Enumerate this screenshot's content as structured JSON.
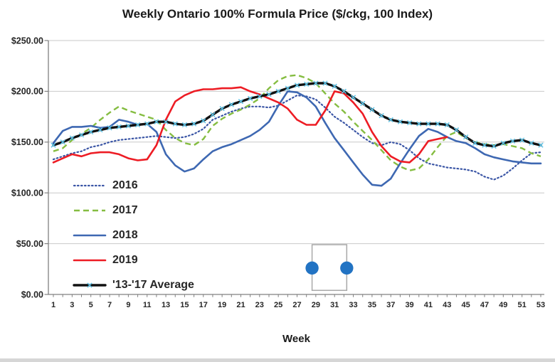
{
  "chart": {
    "title": "Weekly Ontario 100% Formula Price ($/ckg, 100 Index)",
    "x_axis_title": "Week"
  },
  "overlay": {
    "left_week": 28.6,
    "right_week": 32.3,
    "top_value": 49,
    "bottom_value": 4,
    "handle_value": 26,
    "border_color": "#a8a8a8",
    "handle_color": "#2273c3"
  },
  "chart_data": {
    "type": "line",
    "title": "Weekly Ontario 100% Formula Price ($/ckg, 100 Index)",
    "xlabel": "Week",
    "ylabel": "",
    "xlim": [
      1,
      53
    ],
    "ylim": [
      0,
      250
    ],
    "grid": "horizontal-only",
    "grid_color": "#c9c9c9",
    "axis_color": "#808080",
    "legend_position": "inside-left",
    "y_ticks": [
      0,
      50,
      100,
      150,
      200,
      250
    ],
    "y_tick_labels": [
      "$0.00",
      "$50.00",
      "$100.00",
      "$150.00",
      "$200.00",
      "$250.00"
    ],
    "x_tick_labels": [
      "1",
      "3",
      "5",
      "7",
      "9",
      "11",
      "13",
      "15",
      "17",
      "19",
      "21",
      "23",
      "25",
      "27",
      "29",
      "31",
      "33",
      "35",
      "37",
      "39",
      "41",
      "43",
      "45",
      "47",
      "49",
      "51",
      "53"
    ],
    "x_weeks": 53,
    "series": [
      {
        "key": "y2016",
        "name": "2016",
        "color": "#3a55a5",
        "style": "dotted",
        "values": [
          133,
          136,
          139,
          141,
          145,
          147,
          150,
          152,
          153,
          154,
          155,
          156,
          155,
          154,
          155,
          158,
          163,
          172,
          176,
          180,
          183,
          185,
          185,
          184,
          186,
          191,
          196,
          195,
          192,
          184,
          175,
          169,
          162,
          155,
          149,
          147,
          150,
          148,
          142,
          134,
          129,
          127,
          125,
          124,
          123,
          121,
          116,
          113,
          117,
          124,
          132,
          139,
          140
        ]
      },
      {
        "key": "y2017",
        "name": "2017",
        "color": "#85bd41",
        "style": "dashed",
        "values": [
          141,
          144,
          152,
          158,
          164,
          172,
          179,
          185,
          181,
          178,
          175,
          172,
          162,
          154,
          149,
          147,
          153,
          166,
          173,
          178,
          182,
          187,
          193,
          203,
          211,
          215,
          216,
          213,
          208,
          198,
          188,
          180,
          170,
          161,
          152,
          142,
          132,
          126,
          122,
          124,
          133,
          145,
          156,
          160,
          154,
          150,
          148,
          147,
          148,
          146,
          144,
          139,
          136
        ]
      },
      {
        "key": "y2018",
        "name": "2018",
        "color": "#3e68b2",
        "style": "solid",
        "values": [
          149,
          161,
          165,
          165,
          166,
          164,
          165,
          172,
          170,
          167,
          168,
          160,
          138,
          127,
          121,
          124,
          133,
          141,
          145,
          148,
          152,
          156,
          162,
          170,
          186,
          200,
          199,
          194,
          185,
          169,
          154,
          142,
          130,
          118,
          108,
          107,
          114,
          129,
          143,
          156,
          163,
          160,
          155,
          151,
          149,
          144,
          138,
          135,
          133,
          131,
          130,
          129,
          129
        ]
      },
      {
        "key": "y2019",
        "name": "2019",
        "color": "#ed1c24",
        "style": "solid",
        "values": [
          130,
          134,
          138,
          136,
          139,
          140,
          140,
          138,
          134,
          132,
          133,
          147,
          172,
          190,
          196,
          200,
          202,
          202,
          203,
          203,
          204,
          200,
          197,
          193,
          189,
          183,
          172,
          167,
          167,
          181,
          200,
          198,
          189,
          178,
          160,
          146,
          136,
          131,
          130,
          138,
          151,
          153,
          155
        ]
      },
      {
        "key": "avg",
        "name": "'13-'17 Average",
        "color": "#111111",
        "style": "solid-thick",
        "marker": "x",
        "marker_color": "#5fc3e6",
        "values": [
          147,
          150,
          154,
          157,
          160,
          162,
          164,
          165,
          166,
          167,
          168,
          170,
          170,
          168,
          167,
          168,
          171,
          177,
          183,
          187,
          190,
          193,
          195,
          197,
          200,
          203,
          206,
          207,
          208,
          208,
          205,
          200,
          194,
          188,
          182,
          176,
          172,
          170,
          169,
          168,
          168,
          168,
          167,
          162,
          155,
          149,
          147,
          146,
          149,
          151,
          152,
          149,
          147
        ]
      }
    ]
  }
}
